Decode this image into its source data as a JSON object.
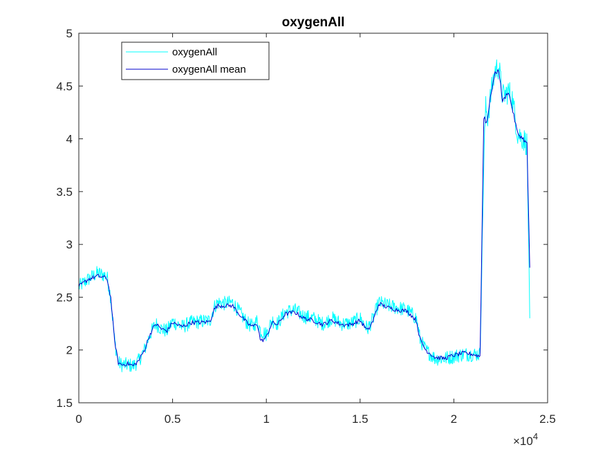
{
  "chart_data": {
    "type": "line",
    "title": "oxygenAll",
    "xlabel": "",
    "ylabel": "",
    "xlim": [
      0,
      25000
    ],
    "ylim": [
      1.5,
      5
    ],
    "x_exponent_label": "×10",
    "x_exponent_power": "4",
    "x_ticks": [
      0,
      5000,
      10000,
      15000,
      20000,
      25000
    ],
    "x_tick_labels": [
      "0",
      "0.5",
      "1",
      "1.5",
      "2",
      "2.5"
    ],
    "y_ticks": [
      1.5,
      2,
      2.5,
      3,
      3.5,
      4,
      4.5,
      5
    ],
    "y_tick_labels": [
      "1.5",
      "2",
      "2.5",
      "3",
      "3.5",
      "4",
      "4.5",
      "5"
    ],
    "grid": false,
    "legend_position": "top-left",
    "series": [
      {
        "name": "oxygenAll",
        "color": "#00ffff",
        "noisy": true,
        "x": [
          0,
          500,
          1000,
          1500,
          1700,
          1900,
          2100,
          2300,
          2600,
          2900,
          3200,
          3500,
          3800,
          4100,
          4400,
          4700,
          5000,
          5500,
          6000,
          6500,
          7000,
          7200,
          7400,
          7800,
          8200,
          8600,
          9000,
          9300,
          9500,
          9700,
          10000,
          10300,
          10600,
          11000,
          11500,
          12000,
          12500,
          13000,
          13500,
          14000,
          14500,
          15000,
          15400,
          15700,
          16000,
          16500,
          17000,
          17500,
          18000,
          18200,
          18500,
          19000,
          19500,
          20000,
          20500,
          21000,
          21400,
          21600,
          21700,
          21800,
          22000,
          22200,
          22400,
          22600,
          22900,
          23100,
          23400,
          23700,
          23900,
          24050
        ],
        "y": [
          2.6,
          2.67,
          2.73,
          2.7,
          2.5,
          2.1,
          1.88,
          1.86,
          1.86,
          1.85,
          1.9,
          2.0,
          2.15,
          2.25,
          2.2,
          2.18,
          2.27,
          2.22,
          2.26,
          2.27,
          2.28,
          2.4,
          2.45,
          2.44,
          2.45,
          2.35,
          2.25,
          2.22,
          2.28,
          2.18,
          2.15,
          2.28,
          2.25,
          2.36,
          2.38,
          2.32,
          2.3,
          2.25,
          2.3,
          2.25,
          2.25,
          2.3,
          2.2,
          2.3,
          2.45,
          2.42,
          2.4,
          2.38,
          2.3,
          2.1,
          2.0,
          1.92,
          1.92,
          1.94,
          1.96,
          1.96,
          1.96,
          3.8,
          4.3,
          4.2,
          4.45,
          4.65,
          4.68,
          4.4,
          4.45,
          4.4,
          4.05,
          4.0,
          3.95,
          2.3
        ]
      },
      {
        "name": "oxygenAll mean",
        "color": "#0000cc",
        "noisy": false,
        "x": [
          0,
          500,
          1000,
          1500,
          1700,
          1900,
          2100,
          2300,
          2600,
          2900,
          3200,
          3500,
          3800,
          4100,
          4400,
          4700,
          5000,
          5500,
          6000,
          6500,
          7000,
          7200,
          7400,
          7800,
          8200,
          8600,
          9000,
          9300,
          9500,
          9700,
          10000,
          10300,
          10600,
          11000,
          11500,
          12000,
          12500,
          13000,
          13500,
          14000,
          14500,
          15000,
          15400,
          15700,
          16000,
          16500,
          17000,
          17500,
          18000,
          18200,
          18500,
          19000,
          19500,
          20000,
          20500,
          21000,
          21400,
          21600,
          21700,
          21800,
          22000,
          22200,
          22400,
          22600,
          22900,
          23100,
          23400,
          23700,
          23900,
          24050
        ],
        "y": [
          2.6,
          2.67,
          2.7,
          2.68,
          2.5,
          2.1,
          1.88,
          1.86,
          1.87,
          1.85,
          1.9,
          2.0,
          2.15,
          2.25,
          2.2,
          2.18,
          2.26,
          2.22,
          2.26,
          2.26,
          2.27,
          2.38,
          2.42,
          2.42,
          2.42,
          2.33,
          2.25,
          2.22,
          2.26,
          2.08,
          2.12,
          2.26,
          2.24,
          2.34,
          2.36,
          2.3,
          2.28,
          2.24,
          2.28,
          2.24,
          2.24,
          2.28,
          2.18,
          2.28,
          2.44,
          2.4,
          2.38,
          2.37,
          2.28,
          2.1,
          2.0,
          1.93,
          1.92,
          1.95,
          1.97,
          1.96,
          1.94,
          4.25,
          4.15,
          4.2,
          4.45,
          4.62,
          4.65,
          4.35,
          4.45,
          4.3,
          4.05,
          4.0,
          3.95,
          2.78
        ]
      }
    ]
  }
}
